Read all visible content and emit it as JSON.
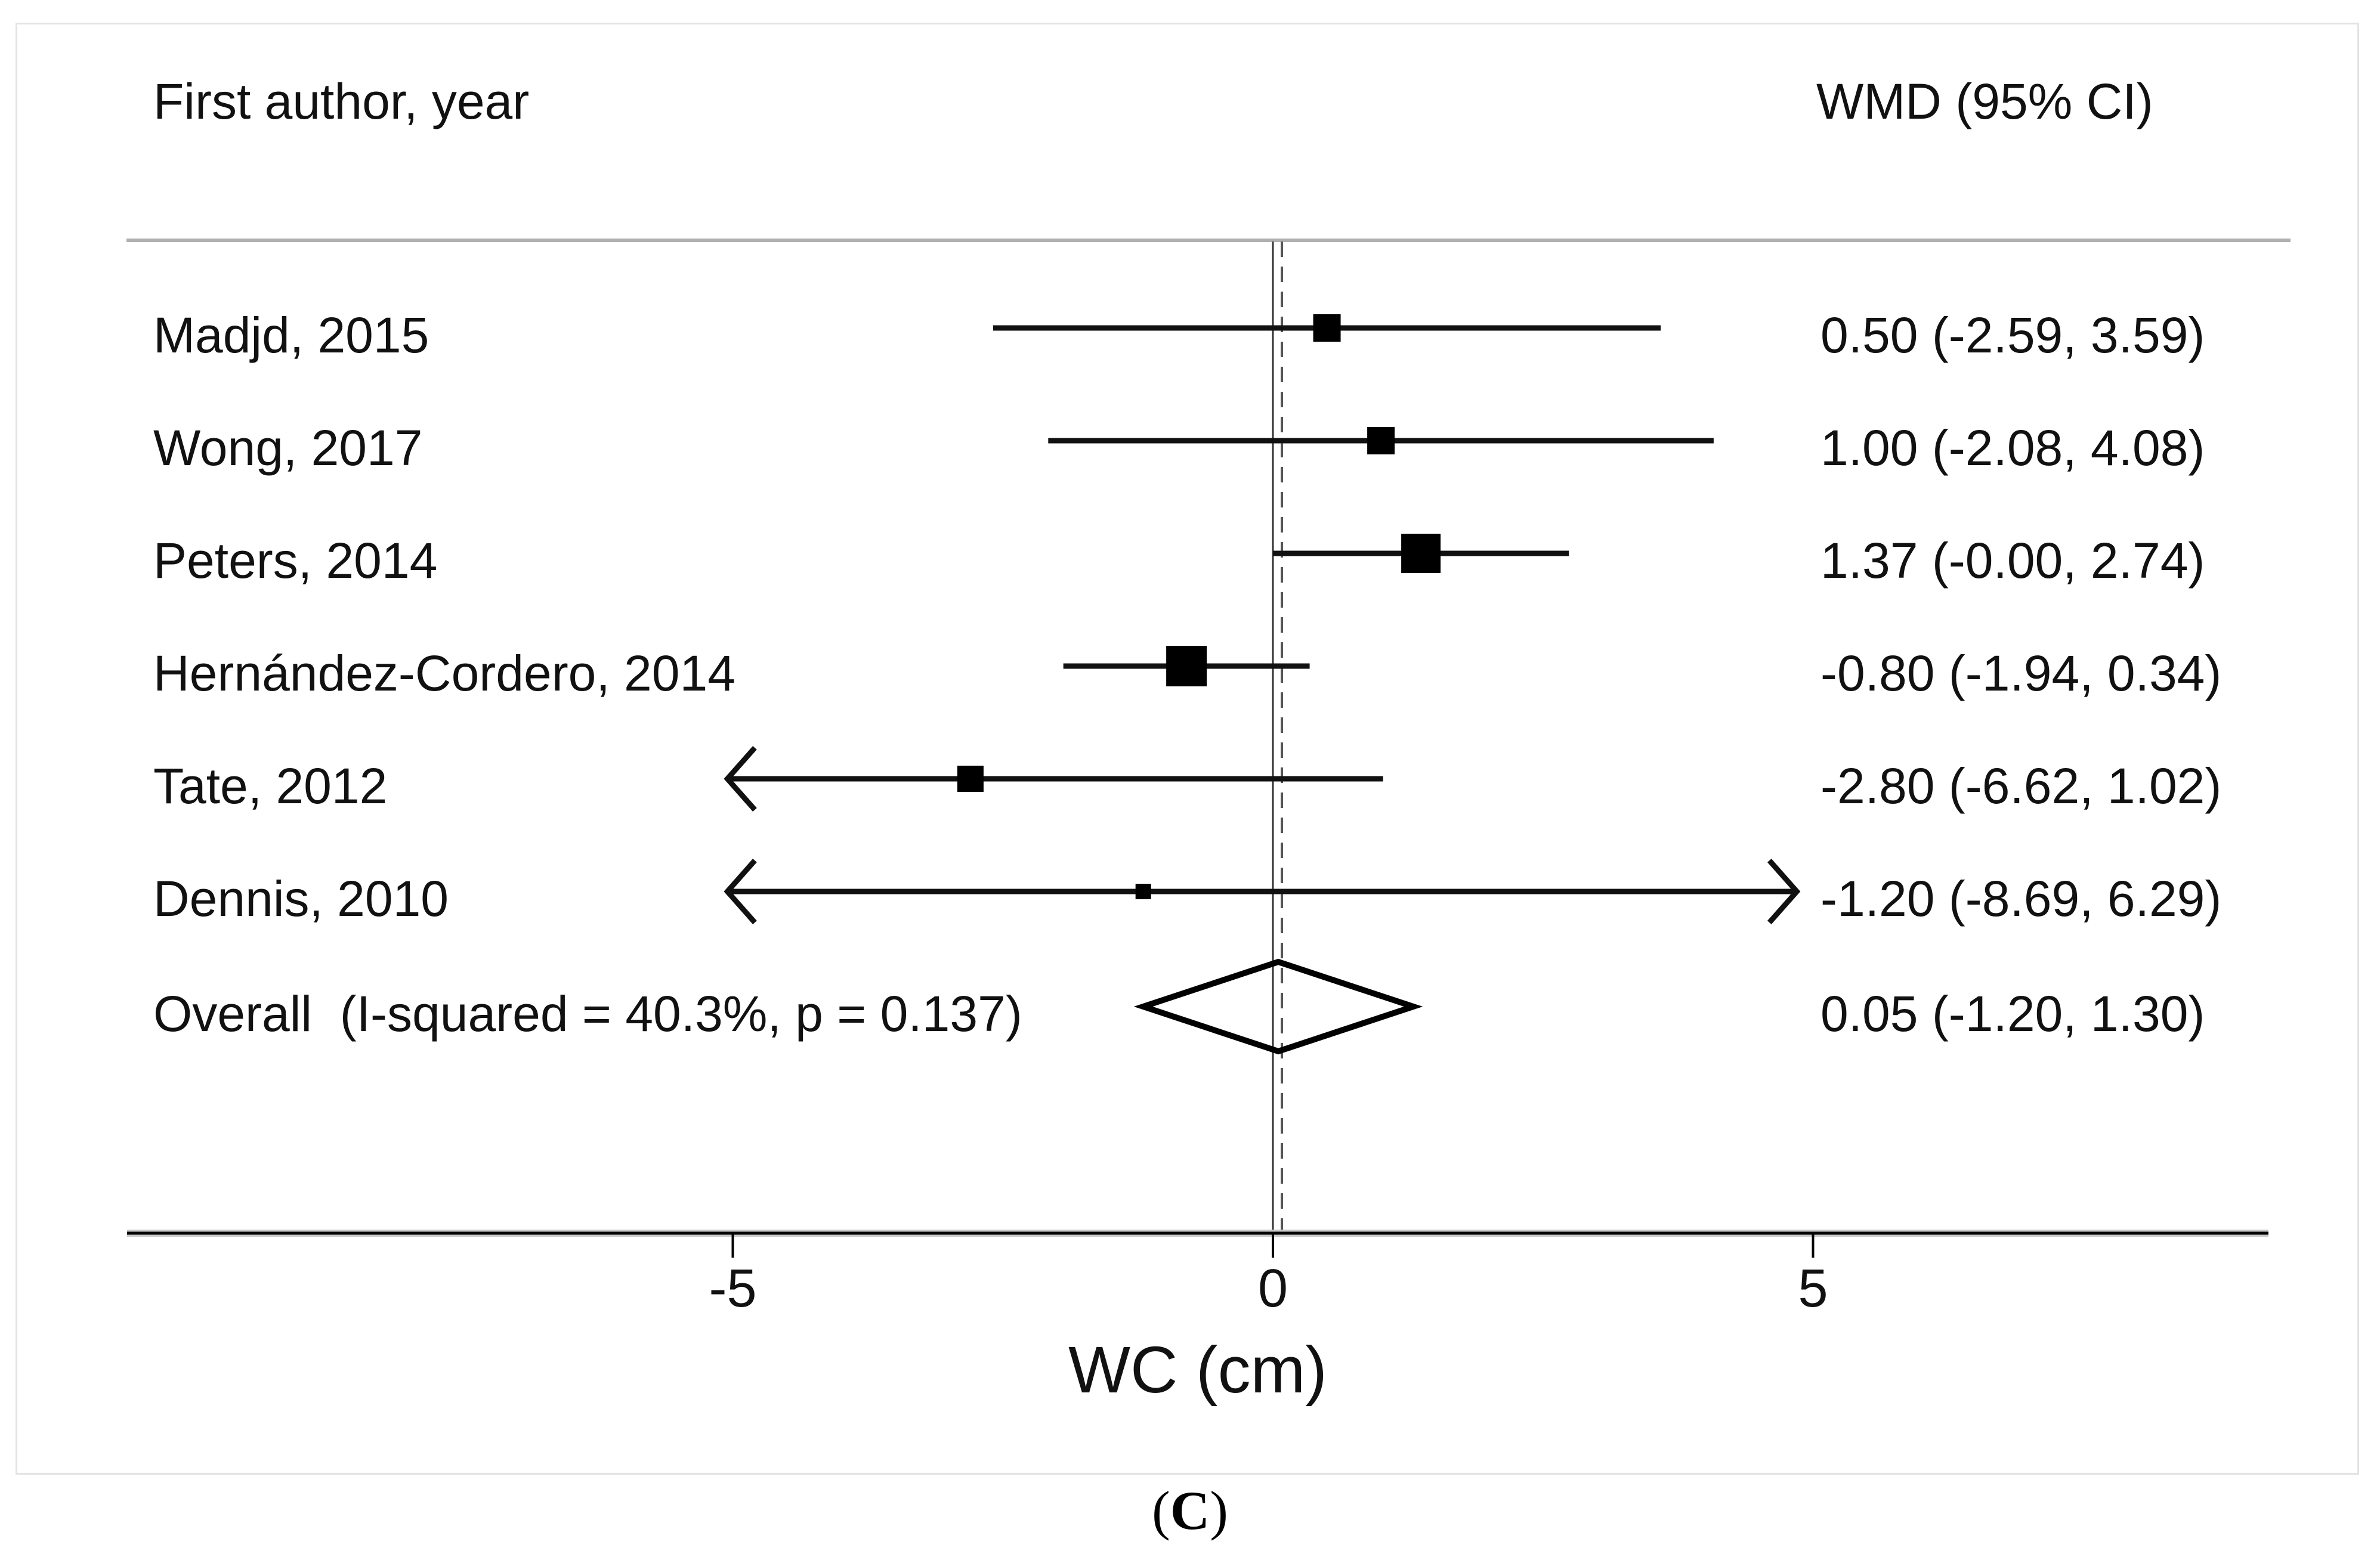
{
  "figure": {
    "header_left": "First author, year",
    "header_right": "WMD (95% CI)",
    "caption_open": "(",
    "caption_letter": "C",
    "caption_close": ")"
  },
  "chart_data": {
    "type": "forest",
    "title": "",
    "xlabel": "WC (cm)",
    "x_ticks": [
      -5,
      0,
      5
    ],
    "x_tick_labels": [
      "-5",
      "0",
      "5"
    ],
    "zero_line_value": 0,
    "overall_dashed_line_value": 0.05,
    "clip_low": -5.05,
    "clip_high": 4.85,
    "legend_position": "none",
    "grid": false,
    "studies": [
      {
        "label": "Madjd, 2015",
        "wmd": 0.5,
        "ci_low": -2.59,
        "ci_high": 3.59,
        "display": "0.50 (-2.59, 3.59)",
        "marker_size": 46
      },
      {
        "label": "Wong, 2017",
        "wmd": 1.0,
        "ci_low": -2.08,
        "ci_high": 4.08,
        "display": "1.00 (-2.08, 4.08)",
        "marker_size": 46
      },
      {
        "label": "Peters, 2014",
        "wmd": 1.37,
        "ci_low": -0.0,
        "ci_high": 2.74,
        "display": "1.37 (-0.00, 2.74)",
        "marker_size": 66
      },
      {
        "label": "Hernández-Cordero, 2014",
        "wmd": -0.8,
        "ci_low": -1.94,
        "ci_high": 0.34,
        "display": "-0.80 (-1.94, 0.34)",
        "marker_size": 68
      },
      {
        "label": "Tate, 2012",
        "wmd": -2.8,
        "ci_low": -6.62,
        "ci_high": 1.02,
        "display": "-2.80 (-6.62, 1.02)",
        "marker_size": 44
      },
      {
        "label": "Dennis, 2010",
        "wmd": -1.2,
        "ci_low": -8.69,
        "ci_high": 6.29,
        "display": "-1.20 (-8.69, 6.29)",
        "marker_size": 26
      }
    ],
    "overall": {
      "label": "Overall  (I-squared = 40.3%, p = 0.137)",
      "wmd": 0.05,
      "ci_low": -1.2,
      "ci_high": 1.3,
      "display": "0.05 (-1.20, 1.30)"
    }
  },
  "colors": {
    "text": "#111111",
    "marker": "#000000",
    "ci_line": "#111111",
    "axis": "#000000",
    "axis_halo": "#c8c8c8",
    "separator": "#b0b0b0",
    "zero_line": "#333333",
    "dashed_line": "#555555",
    "frame_border": "#e3e3e3",
    "background": "#ffffff"
  }
}
